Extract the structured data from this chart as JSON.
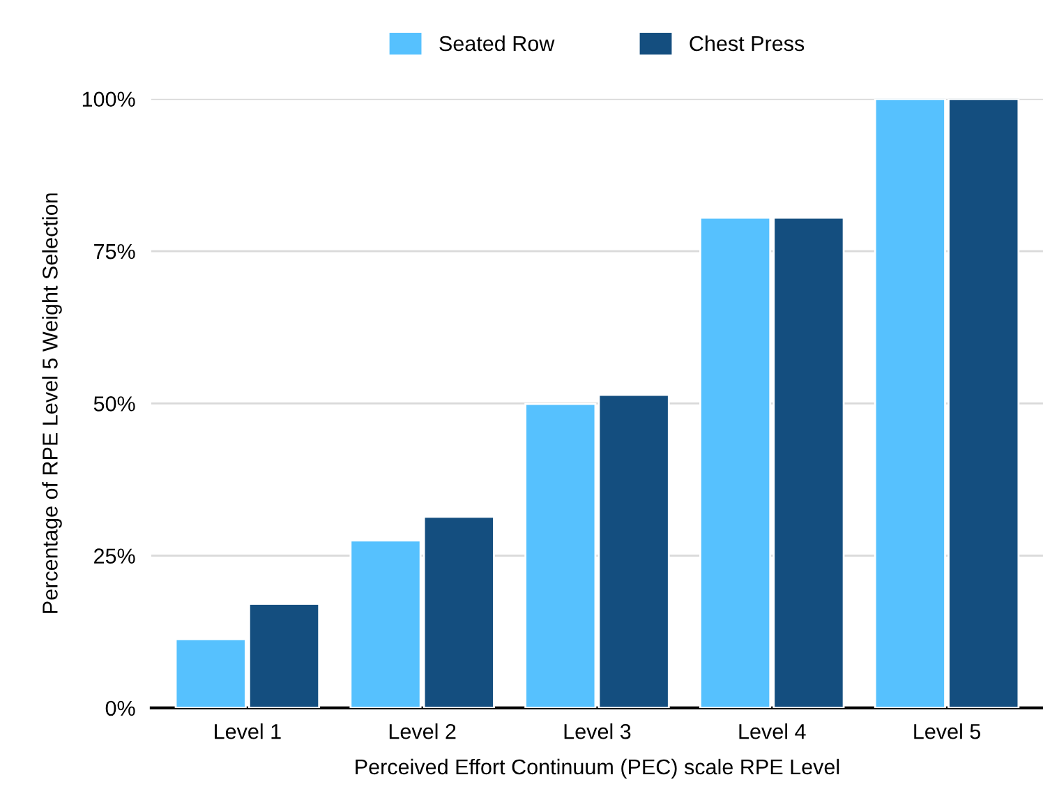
{
  "chart_data": {
    "type": "bar",
    "xlabel": "Perceived Effort Continuum (PEC) scale RPE Level",
    "ylabel": "Percentage of RPE Level 5 Weight Selection",
    "categories": [
      "Level 1",
      "Level 2",
      "Level 3",
      "Level 4",
      "Level 5"
    ],
    "series": [
      {
        "name": "Seated Row",
        "color": "#56c1fe",
        "values": [
          11.3,
          27.5,
          49.9,
          80.5,
          100
        ]
      },
      {
        "name": "Chest Press",
        "color": "#144e7f",
        "values": [
          17.1,
          31.4,
          51.4,
          80.5,
          100
        ]
      }
    ],
    "ylim": [
      0,
      100
    ],
    "yticks": [
      {
        "value": 0,
        "label": "0%"
      },
      {
        "value": 25,
        "label": "25%"
      },
      {
        "value": 50,
        "label": "50%"
      },
      {
        "value": 75,
        "label": "75%"
      },
      {
        "value": 100,
        "label": "100%"
      }
    ],
    "grid": "y",
    "legend": "top"
  }
}
